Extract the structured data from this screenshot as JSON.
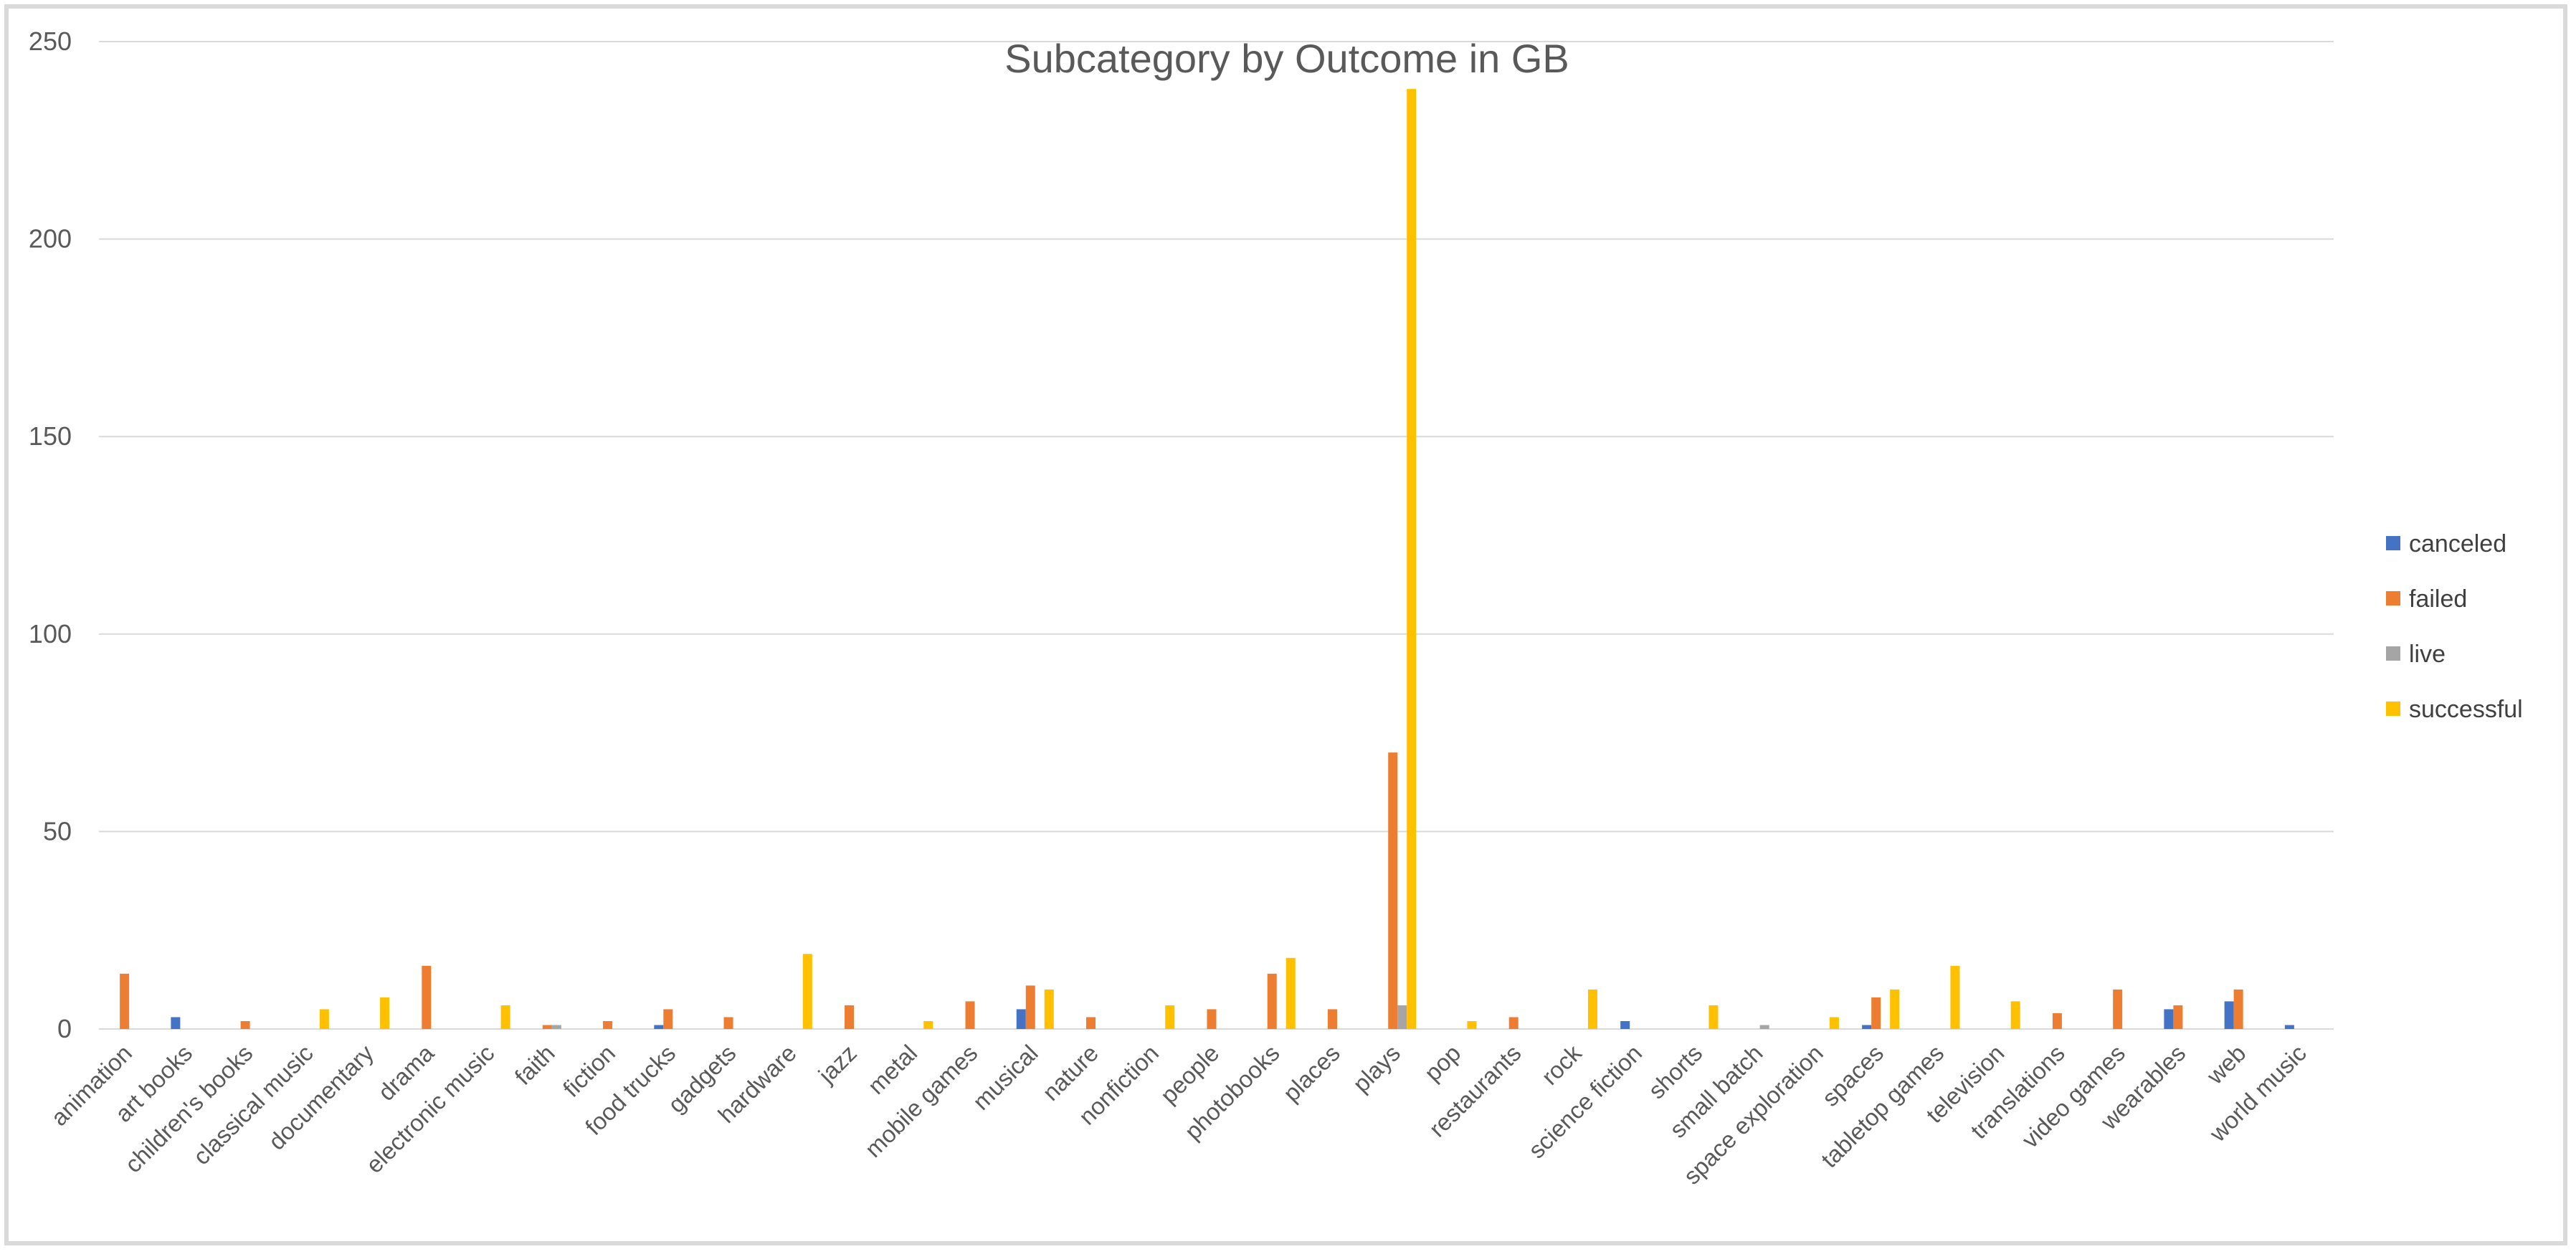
{
  "chart_data": {
    "type": "bar",
    "title": "Subcategory by Outcome in GB",
    "xlabel": "",
    "ylabel": "",
    "ylim": [
      0,
      250
    ],
    "yticks": [
      0,
      50,
      100,
      150,
      200,
      250
    ],
    "grid": true,
    "legend_position": "right",
    "categories": [
      "animation",
      "art books",
      "children's books",
      "classical music",
      "documentary",
      "drama",
      "electronic music",
      "faith",
      "fiction",
      "food trucks",
      "gadgets",
      "hardware",
      "jazz",
      "metal",
      "mobile games",
      "musical",
      "nature",
      "nonfiction",
      "people",
      "photobooks",
      "places",
      "plays",
      "pop",
      "restaurants",
      "rock",
      "science fiction",
      "shorts",
      "small batch",
      "space exploration",
      "spaces",
      "tabletop games",
      "television",
      "translations",
      "video games",
      "wearables",
      "web",
      "world music"
    ],
    "series": [
      {
        "name": "canceled",
        "color": "#4472C4",
        "values": [
          0,
          3,
          0,
          0,
          0,
          0,
          0,
          0,
          0,
          1,
          0,
          0,
          0,
          0,
          0,
          5,
          0,
          0,
          0,
          0,
          0,
          0,
          0,
          0,
          0,
          2,
          0,
          0,
          0,
          1,
          0,
          0,
          0,
          0,
          5,
          7,
          1
        ]
      },
      {
        "name": "failed",
        "color": "#ED7D31",
        "values": [
          14,
          0,
          2,
          0,
          0,
          16,
          0,
          1,
          2,
          5,
          3,
          0,
          6,
          0,
          7,
          11,
          3,
          0,
          5,
          14,
          5,
          70,
          0,
          3,
          0,
          0,
          0,
          0,
          0,
          8,
          0,
          0,
          4,
          10,
          6,
          10,
          0
        ]
      },
      {
        "name": "live",
        "color": "#A5A5A5",
        "values": [
          0,
          0,
          0,
          0,
          0,
          0,
          0,
          1,
          0,
          0,
          0,
          0,
          0,
          0,
          0,
          0,
          0,
          0,
          0,
          0,
          0,
          6,
          0,
          0,
          0,
          0,
          0,
          1,
          0,
          0,
          0,
          0,
          0,
          0,
          0,
          0,
          0
        ]
      },
      {
        "name": "successful",
        "color": "#FFC000",
        "values": [
          0,
          0,
          0,
          5,
          8,
          0,
          6,
          0,
          0,
          0,
          0,
          19,
          0,
          2,
          0,
          10,
          0,
          6,
          0,
          18,
          0,
          238,
          2,
          0,
          10,
          0,
          6,
          0,
          3,
          10,
          16,
          7,
          0,
          0,
          0,
          0,
          0
        ]
      }
    ]
  }
}
